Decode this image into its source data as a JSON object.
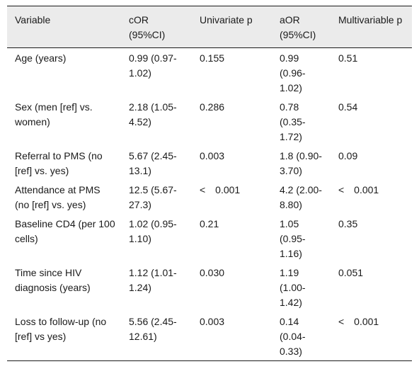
{
  "table": {
    "headers": [
      {
        "label": "Variable"
      },
      {
        "label": "cOR (95%CI)"
      },
      {
        "label": "Univariate p"
      },
      {
        "label": "aOR (95%CI)"
      },
      {
        "label": "Multivariable p"
      }
    ],
    "rows": [
      {
        "variable": "Age (years)",
        "cor": "0.99 (0.97-1.02)",
        "uni_p": "0.155",
        "aor": "0.99 (0.96-1.02)",
        "multi_p": "0.51"
      },
      {
        "variable": "Sex (men [ref] vs. women)",
        "cor": "2.18 (1.05-4.52)",
        "uni_p": "0.286",
        "aor": "0.78 (0.35-1.72)",
        "multi_p": "0.54"
      },
      {
        "variable": "Referral to PMS (no [ref] vs. yes)",
        "cor": "5.67 (2.45-13.1)",
        "uni_p": "0.003",
        "aor": "1.8 (0.90-3.70)",
        "multi_p": "0.09"
      },
      {
        "variable": "Attendance at PMS (no [ref] vs. yes)",
        "cor": "12.5 (5.67-27.3)",
        "uni_p": "< 0.001",
        "aor": "4.2 (2.00-8.80)",
        "multi_p": "< 0.001"
      },
      {
        "variable": "Baseline CD4 (per 100 cells)",
        "cor": "1.02 (0.95-1.10)",
        "uni_p": "0.21",
        "aor": "1.05 (0.95-1.16)",
        "multi_p": "0.35"
      },
      {
        "variable": "Time since HIV diagnosis (years)",
        "cor": "1.12 (1.01-1.24)",
        "uni_p": "0.030",
        "aor": "1.19 (1.00-1.42)",
        "multi_p": "0.051"
      },
      {
        "variable": "Loss to follow-up (no [ref] vs yes)",
        "cor": "5.56 (2.45-12.61)",
        "uni_p": "0.003",
        "aor": "0.14 (0.04-0.33)",
        "multi_p": "< 0.001"
      }
    ]
  }
}
